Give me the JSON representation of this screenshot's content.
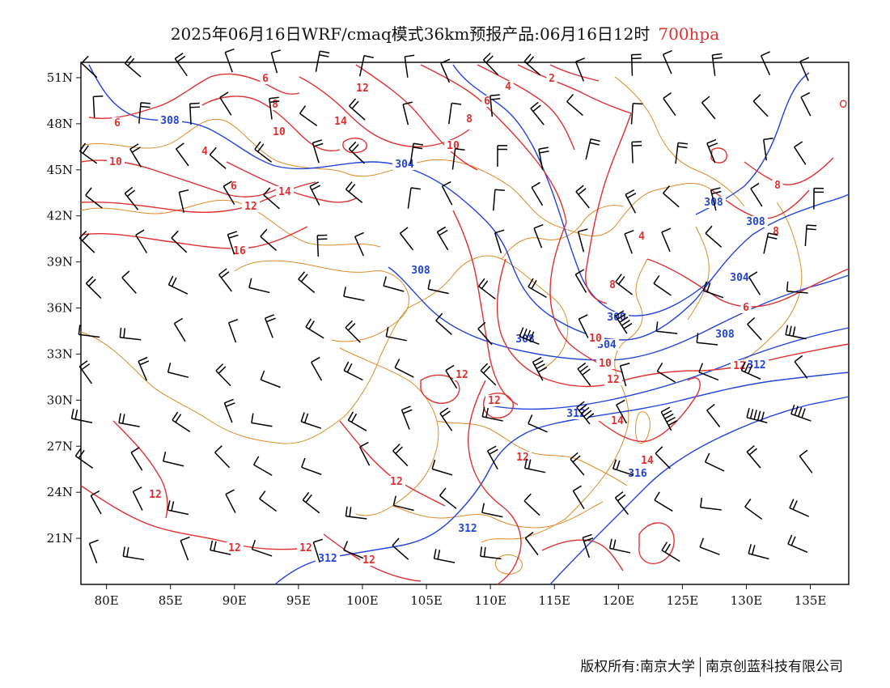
{
  "title": {
    "main": "2025年06月16日WRF/cmaq模式36km预报产品:06月16日12时",
    "level": "700hpa"
  },
  "footer": {
    "copyright": "版权所有:南京大学",
    "company": "南京创蓝科技有限公司"
  },
  "colors": {
    "temperature_contour": "#e03030",
    "height_contour": "#2244dd",
    "boundary": "#e08a2a",
    "wind_barb": "#000000"
  },
  "map": {
    "lon_range": [
      78,
      138
    ],
    "lat_range": [
      18,
      52
    ],
    "lon_ticks": [
      "80E",
      "85E",
      "90E",
      "95E",
      "100E",
      "105E",
      "110E",
      "115E",
      "120E",
      "125E",
      "130E",
      "135E"
    ],
    "lat_ticks": [
      "51N",
      "48N",
      "45N",
      "42N",
      "39N",
      "36N",
      "33N",
      "30N",
      "27N",
      "24N",
      "21N"
    ],
    "height_labels": [
      "308",
      "304",
      "308",
      "308",
      "308",
      "304",
      "300",
      "304",
      "308",
      "308",
      "312",
      "312",
      "316",
      "312",
      "312"
    ],
    "temperature_labels": [
      "6",
      "8",
      "6",
      "10",
      "12",
      "14",
      "6",
      "4",
      "2",
      "8",
      "10",
      "10",
      "14",
      "12",
      "16",
      "4",
      "6",
      "4",
      "8",
      "8",
      "6",
      "8",
      "10",
      "10",
      "12",
      "12",
      "12",
      "12",
      "14",
      "14",
      "12",
      "12",
      "12",
      "12",
      "12",
      "12"
    ]
  }
}
